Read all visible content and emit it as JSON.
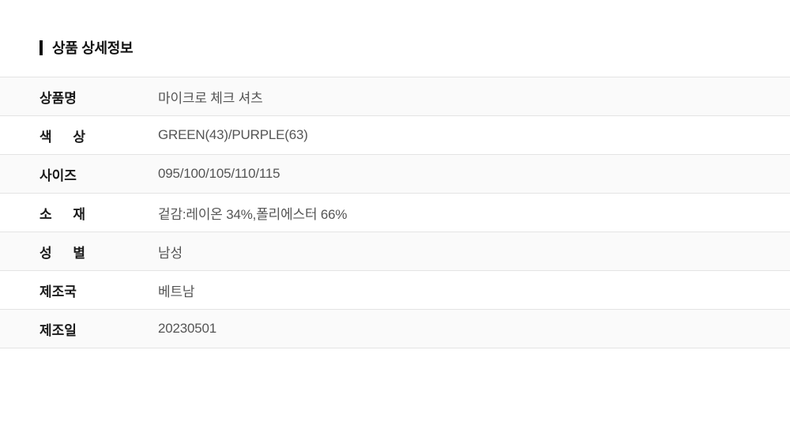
{
  "header": {
    "title": "상품 상세정보"
  },
  "table": {
    "rows": [
      {
        "label": "상품명",
        "value": "마이크로 체크 셔츠"
      },
      {
        "label": "색 상",
        "value": "GREEN(43)/PURPLE(63)"
      },
      {
        "label": "사이즈",
        "value": "095/100/105/110/115"
      },
      {
        "label": "소 재",
        "value": "겉감:레이온 34%,폴리에스터 66%"
      },
      {
        "label": "성 별",
        "value": "남성"
      },
      {
        "label": "제조국",
        "value": "베트남"
      },
      {
        "label": "제조일",
        "value": "20230501"
      }
    ]
  },
  "colors": {
    "accent_bar": "#111111",
    "row_alt_bg": "#fafafa",
    "divider": "#e4e4e4",
    "label_text": "#1a1a1a",
    "value_text": "#555555"
  }
}
